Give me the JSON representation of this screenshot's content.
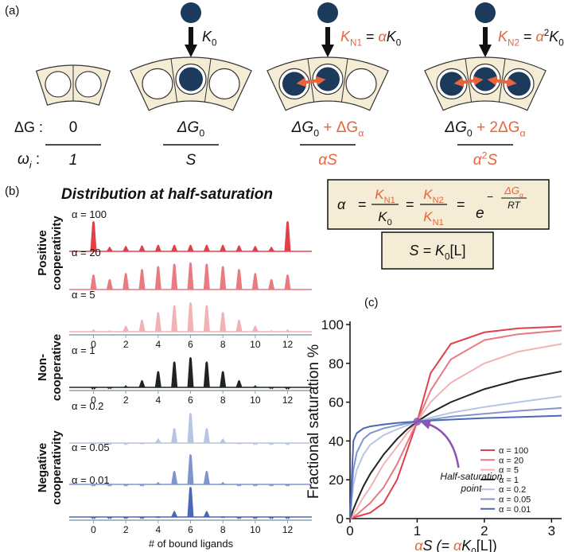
{
  "panel_a": {
    "label": "(a)",
    "k0": [
      "K",
      "0"
    ],
    "kn1": [
      "K",
      "N1",
      " = ",
      "α",
      "K",
      "0"
    ],
    "kn2": [
      "K",
      "N2",
      " = ",
      "α",
      "2",
      "K",
      "0"
    ],
    "dg_label": "ΔG :",
    "omega_label": [
      "ω",
      "i",
      " :"
    ],
    "dg": [
      [
        "0"
      ],
      [
        "ΔG",
        "0"
      ],
      [
        "ΔG",
        "0",
        " + ΔG",
        "α"
      ],
      [
        "ΔG",
        "0",
        " + 2ΔG",
        "α"
      ]
    ],
    "omega": [
      [
        "1"
      ],
      [
        "S"
      ],
      [
        "α",
        "S"
      ],
      [
        "α",
        "2",
        "S"
      ]
    ]
  },
  "panel_b": {
    "label": "(b)",
    "title": "Distribution at half-saturation",
    "x_label": "# of bound ligands",
    "groups": [
      {
        "lines": [
          "Positive",
          "cooperativity"
        ],
        "color": "#e0404a"
      },
      {
        "lines": [
          "Non-",
          "cooperative"
        ],
        "color": "#222222"
      },
      {
        "lines": [
          "Negative",
          "cooperativity"
        ],
        "color": "#5a5aaa"
      }
    ]
  },
  "equations": {
    "alpha": "α",
    "eq": "=",
    "f1n": [
      "K",
      "N1"
    ],
    "f1d": [
      "K",
      "0"
    ],
    "f2n": [
      "K",
      "N2"
    ],
    "f2d": [
      "K",
      "N1"
    ],
    "e": "e",
    "minus": "−",
    "expn": [
      "ΔG",
      "α"
    ],
    "expd": "RT",
    "s": [
      "S = K",
      "0",
      "[L]"
    ]
  },
  "chart_data": [
    {
      "type": "stem",
      "label": "α = 100",
      "color": "#e0404a",
      "x": [
        0,
        1,
        2,
        3,
        4,
        5,
        6,
        7,
        8,
        9,
        10,
        11,
        12
      ],
      "values": [
        1,
        0.15,
        0.18,
        0.2,
        0.22,
        0.22,
        0.22,
        0.22,
        0.22,
        0.2,
        0.18,
        0.15,
        1
      ],
      "xlim": [
        -1.5,
        13.5
      ],
      "ylim": [
        0,
        1
      ]
    },
    {
      "type": "stem",
      "label": "α = 20",
      "color": "#e87a80",
      "x": [
        0,
        1,
        2,
        3,
        4,
        5,
        6,
        7,
        8,
        9,
        10,
        11,
        12
      ],
      "values": [
        0.5,
        0.35,
        0.55,
        0.68,
        0.78,
        0.86,
        0.9,
        0.86,
        0.78,
        0.68,
        0.55,
        0.35,
        0.5
      ],
      "xlim": [
        -1.5,
        13.5
      ],
      "ylim": [
        0,
        1
      ]
    },
    {
      "type": "stem",
      "label": "α = 5",
      "color": "#f2b2b4",
      "x": [
        0,
        1,
        2,
        3,
        4,
        5,
        6,
        7,
        8,
        9,
        10,
        11,
        12
      ],
      "values": [
        0.08,
        0.05,
        0.2,
        0.4,
        0.65,
        0.88,
        0.97,
        0.88,
        0.65,
        0.4,
        0.2,
        0.05,
        0.08
      ],
      "xlim": [
        -1.5,
        13.5
      ],
      "ylim": [
        0,
        1
      ],
      "xticks": [
        0,
        2,
        4,
        6,
        8,
        10,
        12
      ]
    },
    {
      "type": "stem",
      "label": "α = 1",
      "color": "#222222",
      "x": [
        0,
        1,
        2,
        3,
        4,
        5,
        6,
        7,
        8,
        9,
        10,
        11,
        12
      ],
      "values": [
        0,
        0.013,
        0.07,
        0.24,
        0.54,
        0.86,
        1,
        0.86,
        0.54,
        0.24,
        0.07,
        0.013,
        0
      ],
      "xlim": [
        -1.5,
        13.5
      ],
      "ylim": [
        0,
        1
      ],
      "xticks": [
        0,
        2,
        4,
        6,
        8,
        10,
        12
      ]
    },
    {
      "type": "stem",
      "label": "α = 0.2",
      "color": "#b8c4e4",
      "x": [
        0,
        1,
        2,
        3,
        4,
        5,
        6,
        7,
        8,
        9,
        10,
        11,
        12
      ],
      "values": [
        0,
        0,
        0,
        0.02,
        0.15,
        0.5,
        1,
        0.5,
        0.15,
        0.02,
        0,
        0,
        0
      ],
      "xlim": [
        -1.5,
        13.5
      ],
      "ylim": [
        0,
        1
      ]
    },
    {
      "type": "stem",
      "label": "α = 0.05",
      "color": "#7e96cc",
      "x": [
        0,
        1,
        2,
        3,
        4,
        5,
        6,
        7,
        8,
        9,
        10,
        11,
        12
      ],
      "values": [
        0,
        0,
        0,
        0,
        0.08,
        0.45,
        1,
        0.45,
        0.08,
        0,
        0,
        0,
        0
      ],
      "xlim": [
        -1.5,
        13.5
      ],
      "ylim": [
        0,
        1
      ]
    },
    {
      "type": "stem",
      "label": "α = 0.01",
      "color": "#4a68b8",
      "x": [
        0,
        1,
        2,
        3,
        4,
        5,
        6,
        7,
        8,
        9,
        10,
        11,
        12
      ],
      "values": [
        0,
        0,
        0,
        0,
        0.03,
        0.2,
        1,
        0.2,
        0.03,
        0,
        0,
        0,
        0
      ],
      "xlim": [
        -1.5,
        13.5
      ],
      "ylim": [
        0,
        1
      ],
      "xticks": [
        0,
        2,
        4,
        6,
        8,
        10,
        12
      ]
    },
    {
      "type": "line",
      "label": "(c)",
      "x_label": [
        "α",
        "S (= ",
        "α",
        "K",
        "0",
        "[L])"
      ],
      "y_label": "Fractional saturation %",
      "x": [
        0,
        0.05,
        0.1,
        0.2,
        0.3,
        0.5,
        0.7,
        0.85,
        1,
        1.2,
        1.5,
        2,
        2.5,
        3.15
      ],
      "xlim": [
        0,
        3.15
      ],
      "ylim": [
        0,
        100
      ],
      "xticks": [
        0,
        1,
        2,
        3
      ],
      "yticks": [
        0,
        20,
        40,
        60,
        80,
        100
      ],
      "series": [
        {
          "name": "α = 100",
          "color": "#e0404a",
          "values": [
            0,
            0.5,
            1,
            2,
            3,
            8,
            20,
            35,
            50,
            75,
            90,
            96,
            98,
            99
          ]
        },
        {
          "name": "α = 20",
          "color": "#e87a80",
          "values": [
            0,
            1,
            2,
            5,
            8,
            16,
            28,
            39,
            50,
            66,
            82,
            92,
            95,
            97
          ]
        },
        {
          "name": "α = 5",
          "color": "#f2b2b4",
          "values": [
            0,
            2,
            5,
            11,
            16,
            28,
            37,
            44,
            50,
            60,
            70,
            80,
            86,
            90
          ]
        },
        {
          "name": "α = 1",
          "color": "#222222",
          "values": [
            0,
            4.8,
            9,
            16.7,
            23,
            33,
            41,
            46,
            50,
            54.5,
            60,
            66.7,
            71.4,
            75.9
          ]
        },
        {
          "name": "α = 0.2",
          "color": "#b8c4e4",
          "values": [
            0,
            17,
            25,
            33,
            38,
            43,
            46,
            48,
            50,
            52,
            54.5,
            57.5,
            60,
            63
          ]
        },
        {
          "name": "α = 0.05",
          "color": "#7e96cc",
          "values": [
            0,
            25,
            34,
            41,
            44,
            46.5,
            48,
            49,
            50,
            51,
            52.5,
            54,
            55.5,
            57
          ]
        },
        {
          "name": "α = 0.01",
          "color": "#4a68b8",
          "values": [
            0,
            40,
            44,
            46.5,
            47.5,
            48.5,
            49.3,
            49.7,
            50,
            50.5,
            51,
            51.8,
            52.3,
            53
          ]
        }
      ],
      "annotation": {
        "text": [
          "Half-saturation",
          "point"
        ],
        "x": 1,
        "y": 50,
        "color": "#8a55b5"
      }
    }
  ]
}
